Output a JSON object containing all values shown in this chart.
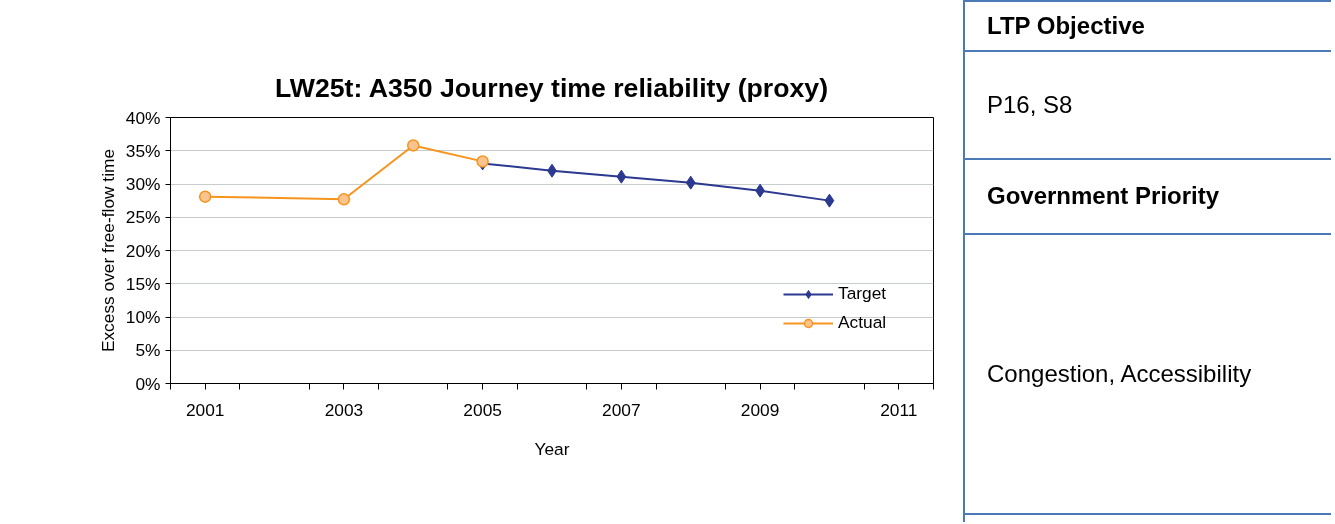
{
  "chart_data": {
    "type": "line",
    "title": "LW25t: A350 Journey time reliability (proxy)",
    "xlabel": "Year",
    "ylabel": "Excess over free-flow time",
    "xlim": [
      2000.5,
      2011.5
    ],
    "xticks": [
      {
        "value": 2000.5,
        "label": null
      },
      {
        "value": 2001,
        "label": "2001"
      },
      {
        "value": 2001.5,
        "label": null
      },
      {
        "value": 2002.5,
        "label": null
      },
      {
        "value": 2003,
        "label": "2003"
      },
      {
        "value": 2003.5,
        "label": null
      },
      {
        "value": 2004.5,
        "label": null
      },
      {
        "value": 2005,
        "label": "2005"
      },
      {
        "value": 2005.5,
        "label": null
      },
      {
        "value": 2006.5,
        "label": null
      },
      {
        "value": 2007,
        "label": "2007"
      },
      {
        "value": 2007.5,
        "label": null
      },
      {
        "value": 2008.5,
        "label": null
      },
      {
        "value": 2009,
        "label": "2009"
      },
      {
        "value": 2009.5,
        "label": null
      },
      {
        "value": 2010.5,
        "label": null
      },
      {
        "value": 2011,
        "label": "2011"
      },
      {
        "value": 2011.5,
        "label": null
      }
    ],
    "ylim": [
      0,
      40
    ],
    "yticks": [
      {
        "value": 0,
        "label": "0%"
      },
      {
        "value": 5,
        "label": "5%"
      },
      {
        "value": 10,
        "label": "10%"
      },
      {
        "value": 15,
        "label": "15%"
      },
      {
        "value": 20,
        "label": "20%"
      },
      {
        "value": 25,
        "label": "25%"
      },
      {
        "value": 30,
        "label": "30%"
      },
      {
        "value": 35,
        "label": "35%"
      },
      {
        "value": 40,
        "label": "40%"
      }
    ],
    "grid": "y",
    "legend": "right",
    "line_style": "solid",
    "series": [
      {
        "name": "Target",
        "color": "#2b3990",
        "marker": "diamond",
        "x": [
          2005,
          2006,
          2007,
          2008,
          2009,
          2010
        ],
        "values": [
          33.1,
          32.0,
          31.1,
          30.2,
          29.0,
          27.5
        ]
      },
      {
        "name": "Actual",
        "color": "#f7941d",
        "marker": "circle",
        "x": [
          2001,
          2003,
          2004,
          2005
        ],
        "values": [
          28.1,
          27.7,
          35.8,
          33.4
        ]
      }
    ],
    "annotations": [
      "LTP Objective",
      "P16, S8",
      "Government Priority",
      "Congestion, Accessibility"
    ]
  }
}
